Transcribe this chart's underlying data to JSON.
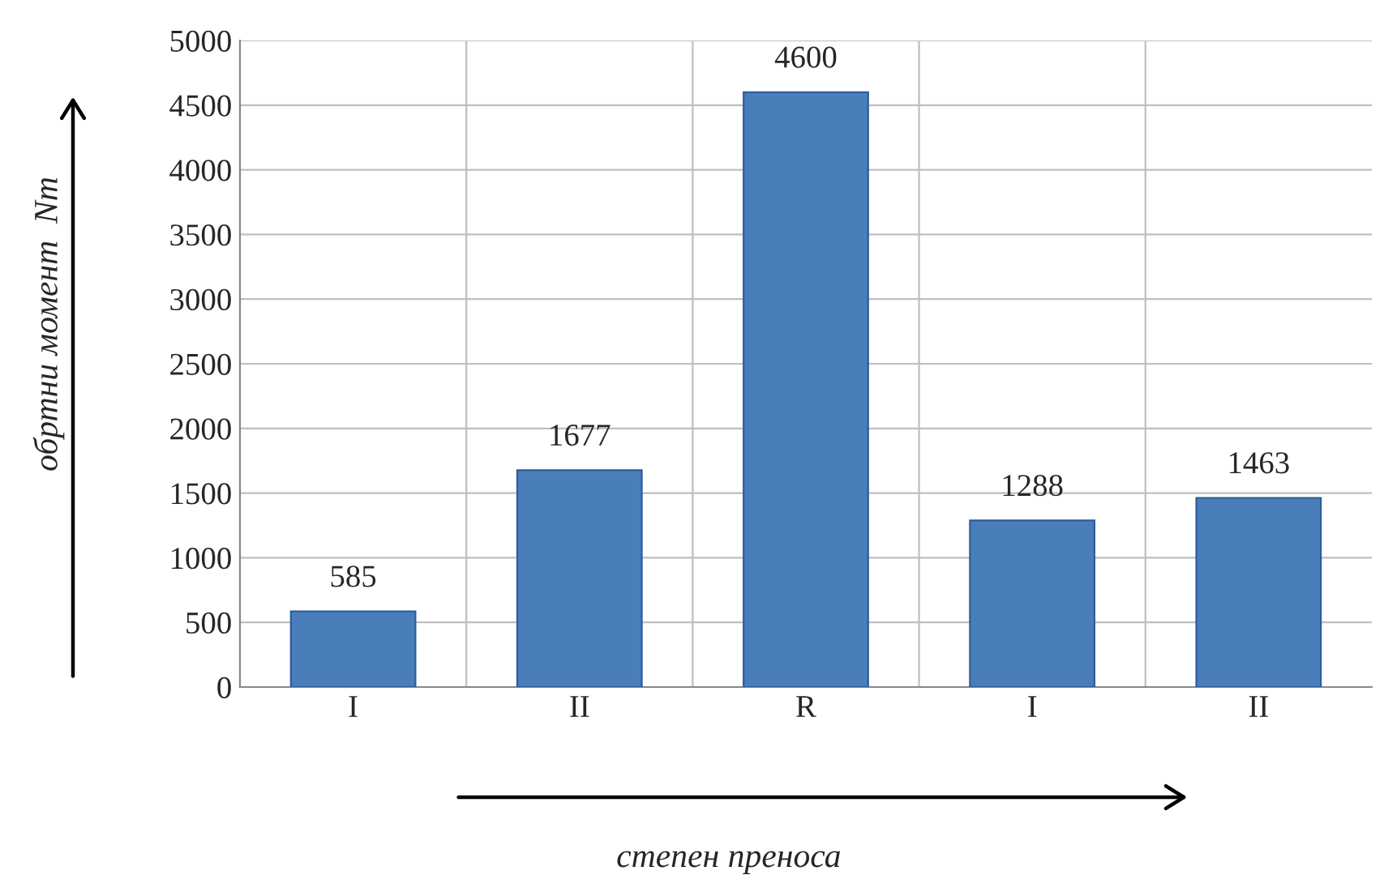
{
  "chart_data": {
    "type": "bar",
    "categories": [
      "I",
      "II",
      "R",
      "I",
      "II"
    ],
    "values": [
      585,
      1677,
      4600,
      1288,
      1463
    ],
    "color": "#4a7ebb",
    "ylim": [
      0,
      5000
    ],
    "yticks": [
      0,
      500,
      1000,
      1500,
      2000,
      2500,
      3000,
      3500,
      4000,
      4500,
      5000
    ],
    "xlabel": "степен преноса",
    "ylabel": "обртни момент  Nm",
    "grid": true,
    "data_labels": true
  }
}
